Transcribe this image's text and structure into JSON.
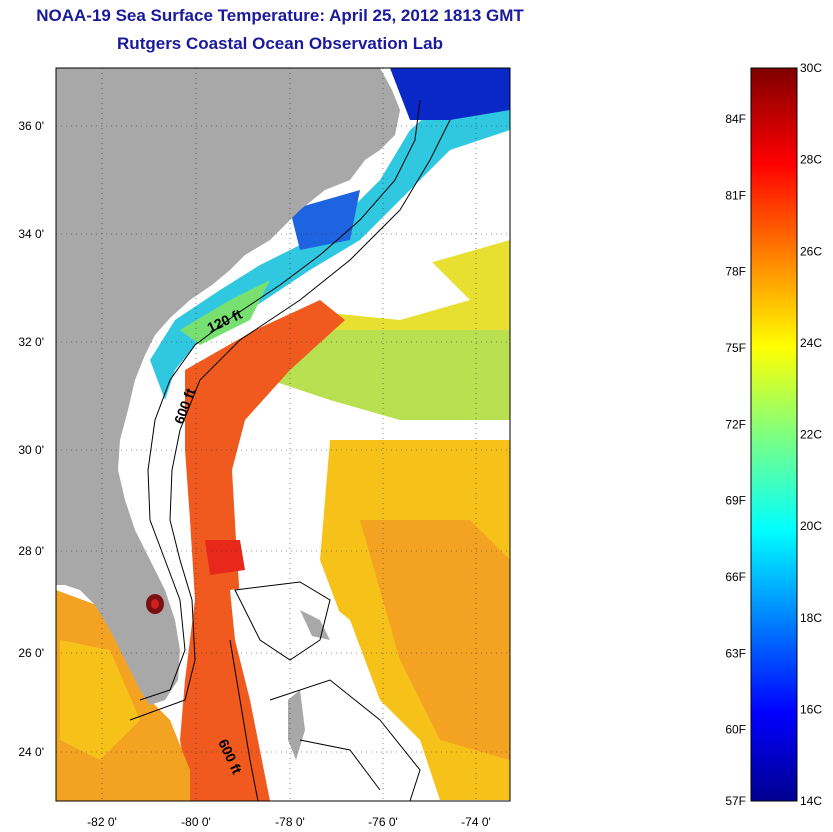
{
  "title": "NOAA-19 Sea Surface Temperature:  April 25, 2012 1813 GMT",
  "subtitle": "Rutgers Coastal Ocean Observation Lab",
  "lat_ticks": [
    "36 0'",
    "34 0'",
    "32 0'",
    "30 0'",
    "28 0'",
    "26 0'",
    "24 0'"
  ],
  "lon_ticks": [
    "-82 0'",
    "-80 0'",
    "-78 0'",
    "-76 0'",
    "-74 0'"
  ],
  "contour_labels": [
    "120 ft",
    "600 ft",
    "600 ft"
  ],
  "colorbar": {
    "celsius": [
      "30C",
      "28C",
      "26C",
      "24C",
      "22C",
      "20C",
      "18C",
      "16C",
      "14C"
    ],
    "fahrenheit": [
      "84F",
      "81F",
      "78F",
      "75F",
      "72F",
      "69F",
      "66F",
      "63F",
      "60F",
      "57F"
    ],
    "min_c": 14,
    "max_c": 30
  },
  "colors": {
    "land": "#a8a8a8",
    "title": "#1a1a9a",
    "gulf_stream": "#f05a1e",
    "shelf": "#30c8e0"
  }
}
